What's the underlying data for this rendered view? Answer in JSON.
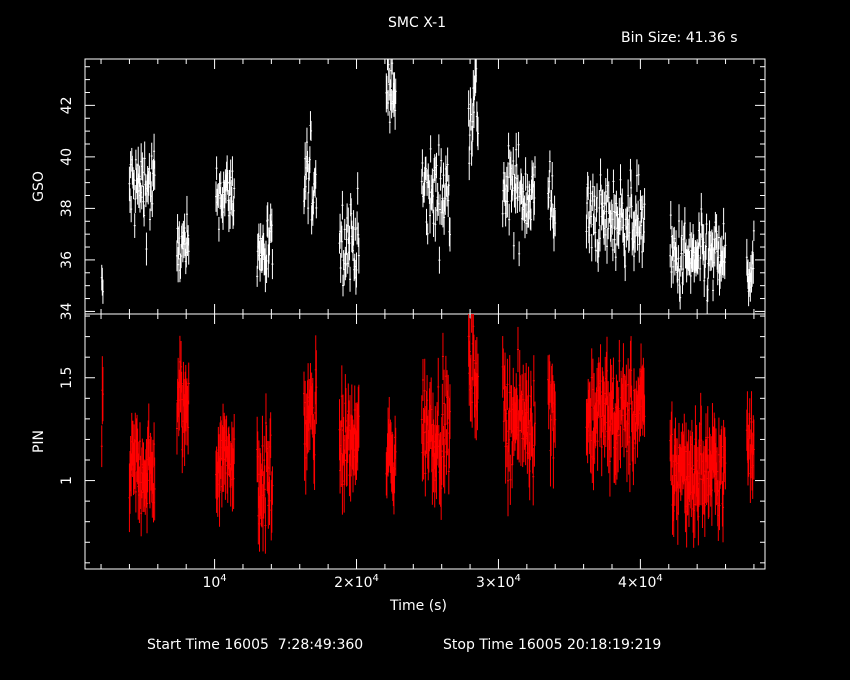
{
  "title": "SMC X-1",
  "bin_size_label": "Bin Size:  41.36  s",
  "start_label": "Start Time 16005  7:28:49:360",
  "stop_label": "Stop Time 16005 20:18:19:219",
  "colors": {
    "background": "#000000",
    "axes": "#ffffff",
    "gso_series": "#ffffff",
    "pin_series": "#ff0000"
  },
  "chart_data": {
    "type": "scatter",
    "error_bars": true,
    "xlabel": "Time (s)",
    "xlim": [
      870,
      48780
    ],
    "xticks": [
      {
        "value": 10000,
        "base": "10",
        "exp": "4"
      },
      {
        "value": 20000,
        "base": "2×10",
        "exp": "4"
      },
      {
        "value": 30000,
        "base": "3×10",
        "exp": "4"
      },
      {
        "value": 40000,
        "base": "4×10",
        "exp": "4"
      }
    ],
    "panels": [
      {
        "name": "gso",
        "ylabel": "GSO",
        "ylim": [
          33.9,
          43.8
        ],
        "yticks": [
          34,
          36,
          38,
          40,
          42
        ],
        "color": "#ffffff",
        "segments": [
          {
            "t0": 2050,
            "t1": 2150,
            "mean": 34.7,
            "sd": 0.6,
            "err": 0.45
          },
          {
            "t0": 4000,
            "t1": 5800,
            "mean": 38.8,
            "sd": 0.9,
            "err": 0.55
          },
          {
            "t0": 7350,
            "t1": 8200,
            "mean": 36.4,
            "sd": 0.6,
            "err": 0.55
          },
          {
            "t0": 10100,
            "t1": 11400,
            "mean": 38.6,
            "sd": 0.6,
            "err": 0.55
          },
          {
            "t0": 13000,
            "t1": 14100,
            "mean": 36.3,
            "sd": 0.8,
            "err": 0.55
          },
          {
            "t0": 16300,
            "t1": 17200,
            "mean": 39.1,
            "sd": 0.9,
            "err": 0.55
          },
          {
            "t0": 18800,
            "t1": 20200,
            "mean": 36.8,
            "sd": 0.8,
            "err": 0.55
          },
          {
            "t0": 22100,
            "t1": 22800,
            "mean": 42.4,
            "sd": 1.1,
            "err": 0.6
          },
          {
            "t0": 24600,
            "t1": 26600,
            "mean": 38.6,
            "sd": 0.9,
            "err": 0.55
          },
          {
            "t0": 27900,
            "t1": 28600,
            "mean": 42.0,
            "sd": 1.1,
            "err": 0.6
          },
          {
            "t0": 30300,
            "t1": 32600,
            "mean": 38.6,
            "sd": 0.9,
            "err": 0.55
          },
          {
            "t0": 33500,
            "t1": 34000,
            "mean": 38.3,
            "sd": 0.9,
            "err": 0.55
          },
          {
            "t0": 36200,
            "t1": 40300,
            "mean": 37.6,
            "sd": 0.8,
            "err": 0.55
          },
          {
            "t0": 42100,
            "t1": 46000,
            "mean": 36.0,
            "sd": 0.8,
            "err": 0.55
          },
          {
            "t0": 47500,
            "t1": 48000,
            "mean": 35.5,
            "sd": 0.6,
            "err": 0.55
          }
        ]
      },
      {
        "name": "pin",
        "ylabel": "PIN",
        "ylim": [
          0.57,
          1.81
        ],
        "yticks": [
          1,
          1.5
        ],
        "color": "#ff0000",
        "segments": [
          {
            "t0": 2050,
            "t1": 2150,
            "mean": 1.25,
            "sd": 0.12,
            "err": 0.13
          },
          {
            "t0": 4000,
            "t1": 5800,
            "mean": 1.05,
            "sd": 0.1,
            "err": 0.13
          },
          {
            "t0": 7350,
            "t1": 8200,
            "mean": 1.35,
            "sd": 0.12,
            "err": 0.14
          },
          {
            "t0": 10100,
            "t1": 11400,
            "mean": 1.12,
            "sd": 0.1,
            "err": 0.13
          },
          {
            "t0": 13000,
            "t1": 14100,
            "mean": 1.0,
            "sd": 0.12,
            "err": 0.13
          },
          {
            "t0": 16300,
            "t1": 17200,
            "mean": 1.28,
            "sd": 0.12,
            "err": 0.14
          },
          {
            "t0": 18800,
            "t1": 20200,
            "mean": 1.18,
            "sd": 0.1,
            "err": 0.14
          },
          {
            "t0": 22100,
            "t1": 22800,
            "mean": 1.12,
            "sd": 0.12,
            "err": 0.13
          },
          {
            "t0": 24600,
            "t1": 26600,
            "mean": 1.25,
            "sd": 0.12,
            "err": 0.14
          },
          {
            "t0": 27900,
            "t1": 28600,
            "mean": 1.55,
            "sd": 0.12,
            "err": 0.14
          },
          {
            "t0": 30300,
            "t1": 32600,
            "mean": 1.3,
            "sd": 0.12,
            "err": 0.14
          },
          {
            "t0": 33500,
            "t1": 34000,
            "mean": 1.35,
            "sd": 0.12,
            "err": 0.14
          },
          {
            "t0": 36200,
            "t1": 40300,
            "mean": 1.32,
            "sd": 0.12,
            "err": 0.14
          },
          {
            "t0": 42100,
            "t1": 46000,
            "mean": 1.05,
            "sd": 0.12,
            "err": 0.14
          },
          {
            "t0": 47500,
            "t1": 48000,
            "mean": 1.15,
            "sd": 0.1,
            "err": 0.13
          }
        ]
      }
    ]
  }
}
